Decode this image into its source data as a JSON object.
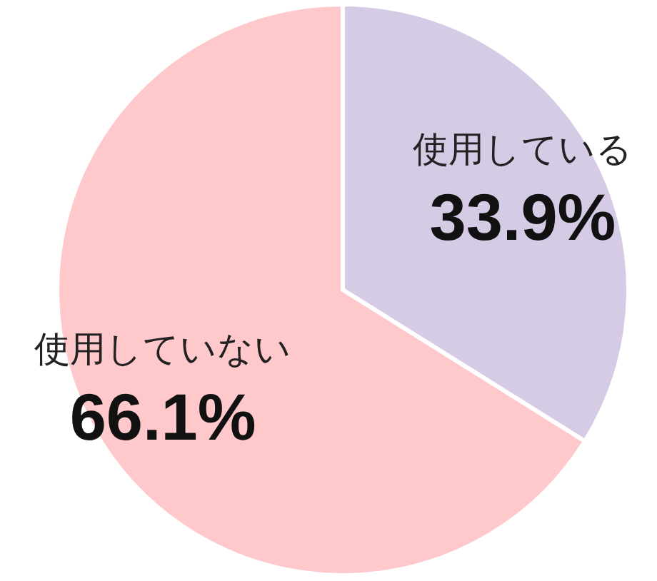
{
  "chart_data": {
    "type": "pie",
    "categories": [
      "使用している",
      "使用していない"
    ],
    "values": [
      33.9,
      66.1
    ],
    "colors": [
      "#d5cbe5",
      "#ffc8cb"
    ],
    "value_labels": [
      "33.9%",
      "66.1%"
    ]
  }
}
